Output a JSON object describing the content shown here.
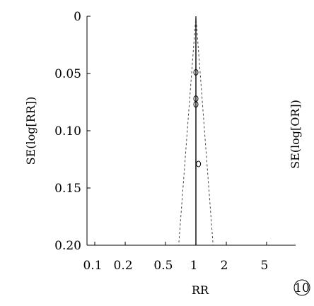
{
  "chart_data": {
    "type": "scatter",
    "subtype": "funnel-plot",
    "xlabel": "RR",
    "ylabel": "SE(log[RR])",
    "ylabel_right": "SE(log[OR])",
    "panel_label": "10",
    "x_scale": "log",
    "x_ticks": [
      {
        "value": 0.1,
        "label": "0.1"
      },
      {
        "value": 0.2,
        "label": "0.2"
      },
      {
        "value": 0.5,
        "label": "0.5"
      },
      {
        "value": 1,
        "label": "1"
      },
      {
        "value": 2,
        "label": "2"
      },
      {
        "value": 5,
        "label": "5"
      }
    ],
    "y_ticks": [
      {
        "value": 0,
        "label": "0"
      },
      {
        "value": 0.05,
        "label": "0.05"
      },
      {
        "value": 0.1,
        "label": "0.10"
      },
      {
        "value": 0.15,
        "label": "0.15"
      },
      {
        "value": 0.2,
        "label": "0.20"
      }
    ],
    "ylim": [
      0,
      0.2
    ],
    "y_inverted": true,
    "pooled_rr": 1.0,
    "funnel_z": 1.96,
    "points": [
      {
        "x": 1.0,
        "y": 0.049
      },
      {
        "x": 1.0,
        "y": 0.072
      },
      {
        "x": 1.0,
        "y": 0.077
      },
      {
        "x": 1.06,
        "y": 0.129
      }
    ],
    "grid": false,
    "legend": "none"
  }
}
